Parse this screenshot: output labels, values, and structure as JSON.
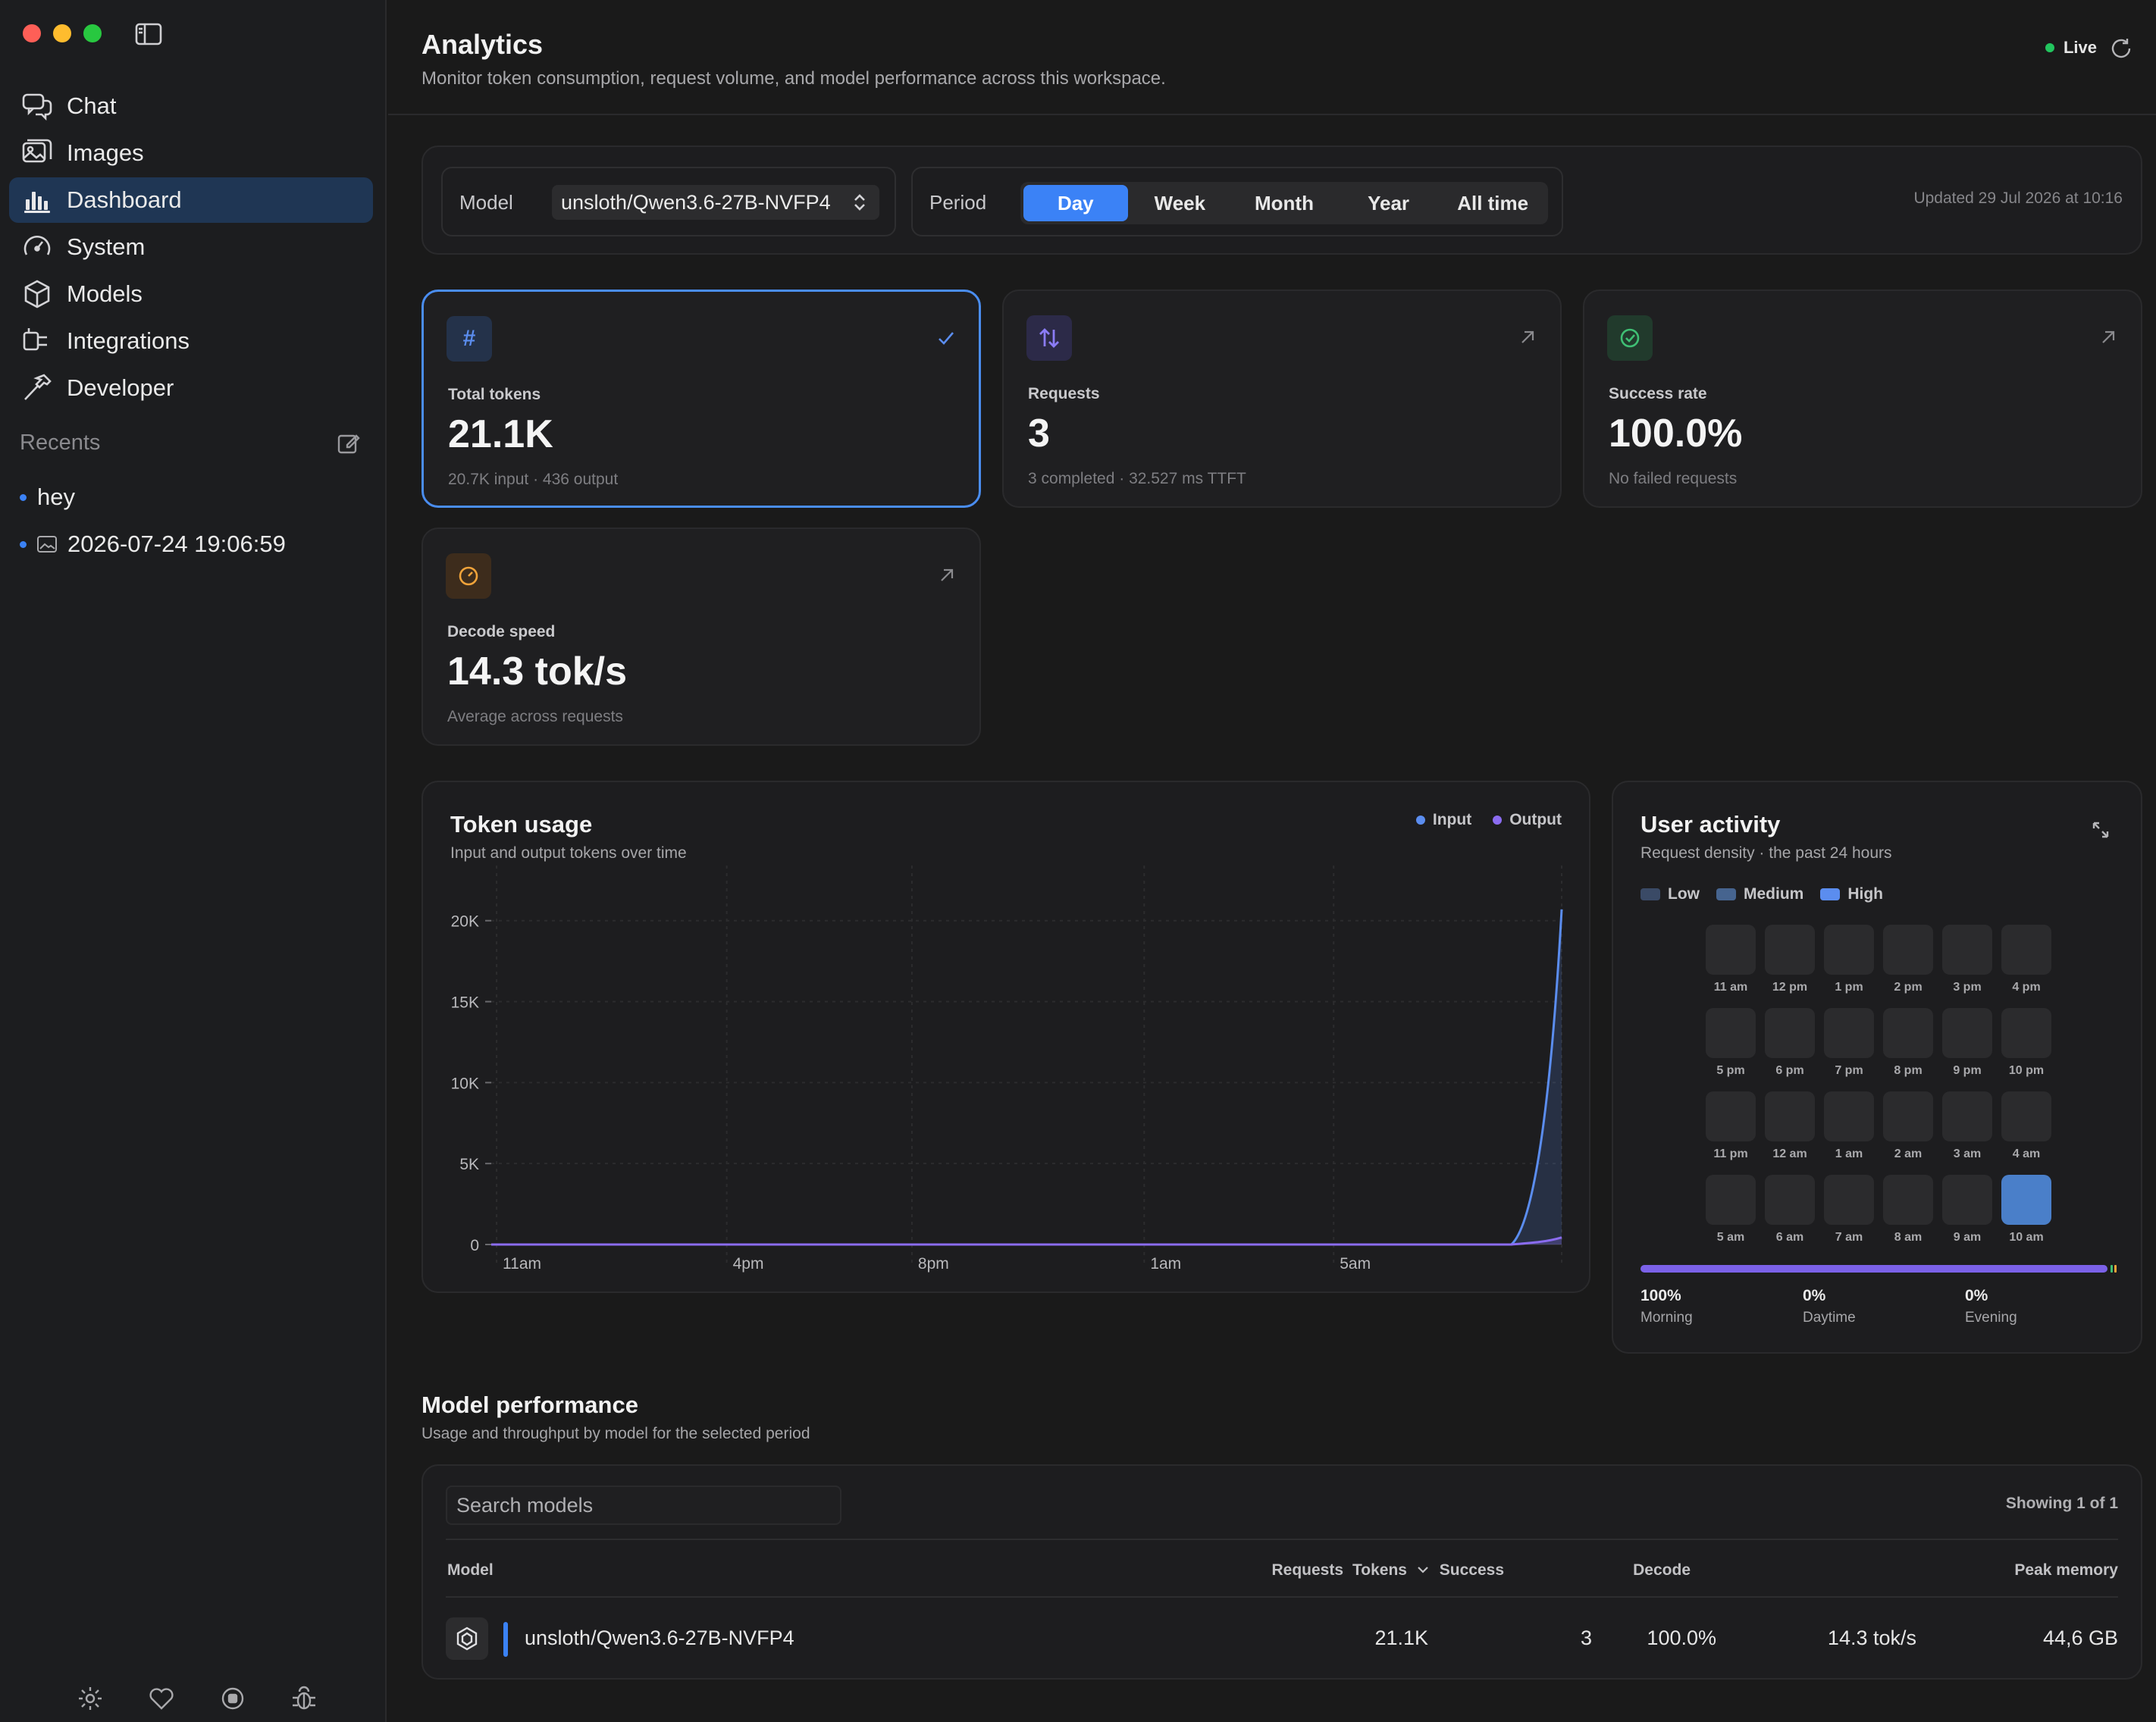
{
  "sidebar": {
    "nav": [
      {
        "label": "Chat",
        "icon": "chat-icon"
      },
      {
        "label": "Images",
        "icon": "images-icon"
      },
      {
        "label": "Dashboard",
        "icon": "dashboard-icon"
      },
      {
        "label": "System",
        "icon": "gauge-icon"
      },
      {
        "label": "Models",
        "icon": "cube-icon"
      },
      {
        "label": "Integrations",
        "icon": "plug-icon"
      },
      {
        "label": "Developer",
        "icon": "hammer-icon"
      }
    ],
    "active": "Dashboard",
    "recents_label": "Recents",
    "recents": [
      {
        "label": "hey"
      },
      {
        "label": "2026-07-24 19:06:59",
        "icon": "image-icon"
      }
    ],
    "bottom_icons": [
      "gear-icon",
      "heart-icon",
      "stop-icon",
      "bug-icon"
    ]
  },
  "header": {
    "title": "Analytics",
    "subtitle": "Monitor token consumption, request volume, and model performance across this workspace.",
    "live_label": "Live"
  },
  "filters": {
    "model_label": "Model",
    "model_value": "unsloth/Qwen3.6-27B-NVFP4",
    "period_label": "Period",
    "periods": [
      "Day",
      "Week",
      "Month",
      "Year",
      "All time"
    ],
    "selected_period": "Day",
    "updated": "Updated 29 Jul 2026 at 10:16"
  },
  "cards": [
    {
      "label": "Total tokens",
      "value": "21.1K",
      "sub": "20.7K input · 436 output",
      "icon": "hash-icon",
      "selected": true
    },
    {
      "label": "Requests",
      "value": "3",
      "sub": "3 completed · 32.527 ms TTFT",
      "icon": "arrows-updown-icon"
    },
    {
      "label": "Success rate",
      "value": "100.0%",
      "sub": "No failed requests",
      "icon": "check-circle-icon"
    },
    {
      "label": "Decode speed",
      "value": "14.3 tok/s",
      "sub": "Average across requests",
      "icon": "speedometer-icon"
    }
  ],
  "token_usage": {
    "title": "Token usage",
    "subtitle": "Input and output tokens over time",
    "legend": [
      "Input",
      "Output"
    ],
    "colors": {
      "input": "#5b8def",
      "output": "#8b6cf0"
    }
  },
  "chart_data": {
    "type": "area",
    "y_ticks": [
      "20K",
      "15K",
      "10K",
      "5K",
      "0"
    ],
    "x_ticks": [
      "11am",
      "4pm",
      "8pm",
      "1am",
      "5am"
    ],
    "ylim": [
      0,
      22000
    ],
    "series": [
      {
        "name": "Input",
        "final_value": 20700
      },
      {
        "name": "Output",
        "final_value": 436
      }
    ]
  },
  "user_activity": {
    "title": "User activity",
    "subtitle": "Request density · the past 24 hours",
    "legend": [
      "Low",
      "Medium",
      "High"
    ],
    "hours": [
      "11 am",
      "12 pm",
      "1 pm",
      "2 pm",
      "3 pm",
      "4 pm",
      "5 pm",
      "6 pm",
      "7 pm",
      "8 pm",
      "9 pm",
      "10 pm",
      "11 pm",
      "12 am",
      "1 am",
      "2 am",
      "3 am",
      "4 am",
      "5 am",
      "6 am",
      "7 am",
      "8 am",
      "9 am",
      "10 am"
    ],
    "active_hour": "10 am",
    "breakdown": [
      {
        "pct": "100%",
        "label": "Morning"
      },
      {
        "pct": "0%",
        "label": "Daytime"
      },
      {
        "pct": "0%",
        "label": "Evening"
      }
    ]
  },
  "model_performance": {
    "title": "Model performance",
    "subtitle": "Usage and throughput by model for the selected period",
    "search_placeholder": "Search models",
    "showing": "Showing 1 of 1",
    "columns": [
      "Model",
      "Tokens",
      "Requests",
      "Success",
      "Decode",
      "Peak memory"
    ],
    "rows": [
      {
        "model": "unsloth/Qwen3.6-27B-NVFP4",
        "tokens": "21.1K",
        "requests": "3",
        "success": "100.0%",
        "decode": "14.3 tok/s",
        "peak_memory": "44,6 GB"
      }
    ]
  }
}
